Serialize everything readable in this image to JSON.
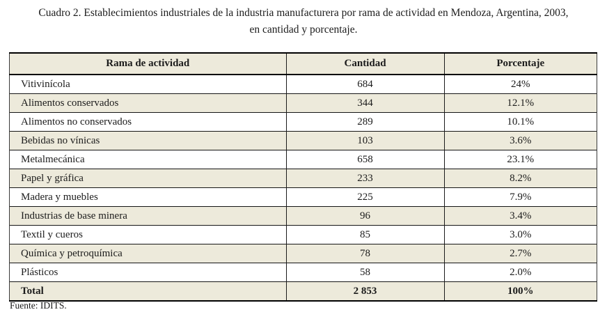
{
  "title": {
    "line1": "Cuadro 2. Establecimientos industriales de la industria manufacturera por rama de actividad en Mendoza, Argentina, 2003,",
    "line2": "en cantidad y porcentaje."
  },
  "table": {
    "headers": {
      "rama": "Rama de actividad",
      "cantidad": "Cantidad",
      "porcentaje": "Porcentaje"
    },
    "rows": [
      {
        "rama": "Vitivinícola",
        "cantidad": "684",
        "porcentaje": "24%"
      },
      {
        "rama": "Alimentos conservados",
        "cantidad": "344",
        "porcentaje": "12.1%"
      },
      {
        "rama": "Alimentos no conservados",
        "cantidad": "289",
        "porcentaje": "10.1%"
      },
      {
        "rama": "Bebidas no vínicas",
        "cantidad": "103",
        "porcentaje": "3.6%"
      },
      {
        "rama": "Metalmecánica",
        "cantidad": "658",
        "porcentaje": "23.1%"
      },
      {
        "rama": "Papel y gráfica",
        "cantidad": "233",
        "porcentaje": "8.2%"
      },
      {
        "rama": "Madera y muebles",
        "cantidad": "225",
        "porcentaje": "7.9%"
      },
      {
        "rama": "Industrias de base minera",
        "cantidad": "96",
        "porcentaje": "3.4%"
      },
      {
        "rama": "Textil y cueros",
        "cantidad": "85",
        "porcentaje": "3.0%"
      },
      {
        "rama": "Química y petroquímica",
        "cantidad": "78",
        "porcentaje": "2.7%"
      },
      {
        "rama": "Plásticos",
        "cantidad": "58",
        "porcentaje": "2.0%"
      }
    ],
    "total": {
      "rama": "Total",
      "cantidad": "2 853",
      "porcentaje": "100%"
    }
  },
  "source": "Fuente: IDITS.",
  "colors": {
    "row_band": "#edeadb",
    "border": "#000000",
    "text": "#1b1b1b",
    "background": "#ffffff"
  },
  "chart_data": {
    "type": "table",
    "title": "Cuadro 2. Establecimientos industriales de la industria manufacturera por rama de actividad en Mendoza, Argentina, 2003, en cantidad y porcentaje.",
    "columns": [
      "Rama de actividad",
      "Cantidad",
      "Porcentaje"
    ],
    "categories": [
      "Vitivinícola",
      "Alimentos conservados",
      "Alimentos no conservados",
      "Bebidas no vínicas",
      "Metalmecánica",
      "Papel y gráfica",
      "Madera y muebles",
      "Industrias de base minera",
      "Textil y cueros",
      "Química y petroquímica",
      "Plásticos"
    ],
    "series": [
      {
        "name": "Cantidad",
        "values": [
          684,
          344,
          289,
          103,
          658,
          233,
          225,
          96,
          85,
          78,
          58
        ]
      },
      {
        "name": "Porcentaje",
        "values": [
          24,
          12.1,
          10.1,
          3.6,
          23.1,
          8.2,
          7.9,
          3.4,
          3.0,
          2.7,
          2.0
        ]
      }
    ],
    "total": {
      "Cantidad": 2853,
      "Porcentaje": 100
    },
    "source": "Fuente: IDITS."
  }
}
